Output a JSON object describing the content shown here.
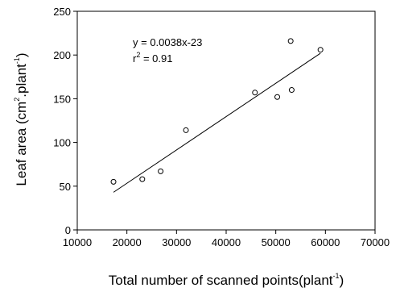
{
  "chart_data": {
    "type": "scatter",
    "title": "",
    "xlabel": {
      "prefix": "Total number of scanned points(plant",
      "sup": "-1",
      "suffix": ")"
    },
    "ylabel": {
      "prefix": "Leaf area (cm",
      "sup1": "2",
      "middle": ".plant",
      "sup2": "-1",
      "suffix": ")"
    },
    "xlim": [
      10000,
      70000
    ],
    "ylim": [
      0,
      250
    ],
    "xticks": [
      10000,
      20000,
      30000,
      40000,
      50000,
      60000,
      70000
    ],
    "yticks": [
      0,
      50,
      100,
      150,
      200,
      250
    ],
    "x_tick_labels": [
      "10000",
      "20000",
      "30000",
      "40000",
      "50000",
      "60000",
      "70000"
    ],
    "y_tick_labels": [
      "0",
      "50",
      "100",
      "150",
      "200",
      "250"
    ],
    "grid": false,
    "series": [
      {
        "marker": "open-circle",
        "points": [
          {
            "x": 17300,
            "y": 55
          },
          {
            "x": 23100,
            "y": 58
          },
          {
            "x": 26800,
            "y": 67
          },
          {
            "x": 31900,
            "y": 114
          },
          {
            "x": 45800,
            "y": 157
          },
          {
            "x": 50300,
            "y": 152
          },
          {
            "x": 53000,
            "y": 216
          },
          {
            "x": 53200,
            "y": 160
          },
          {
            "x": 59000,
            "y": 206
          }
        ]
      }
    ],
    "regression": {
      "x_range": [
        17300,
        59000
      ],
      "y_range": [
        43,
        202
      ]
    },
    "annotations": {
      "equation": "y = 0.0038x-23",
      "r2_prefix": "r",
      "r2_sup": "2",
      "r2_suffix": " = 0.91"
    }
  }
}
